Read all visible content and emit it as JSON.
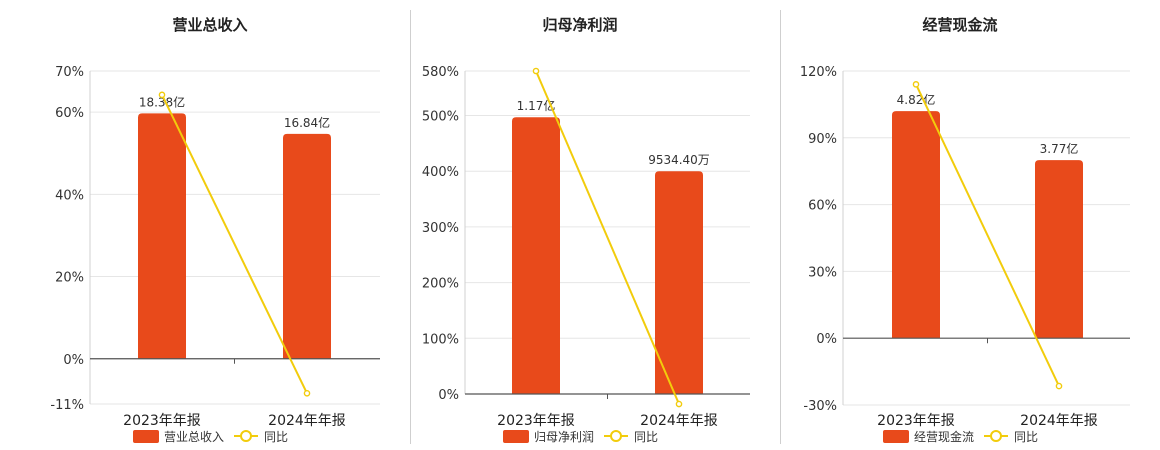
{
  "chart_data": [
    {
      "type": "bar",
      "title": "营业总收入",
      "categories": [
        "2023年年报",
        "2024年年报"
      ],
      "bar_series": {
        "name": "营业总收入",
        "color": "#e84a1b",
        "bar_heights_pct": [
          59.7,
          54.7
        ],
        "labels": [
          "18.38亿",
          "16.84亿"
        ]
      },
      "line_series": {
        "name": "同比",
        "color": "#f2cc0c",
        "values_pct": [
          64.2,
          -8.4
        ]
      },
      "y_ticks": [
        70,
        60,
        40,
        20,
        0,
        -11
      ],
      "y_tick_labels": [
        "70%",
        "60%",
        "40%",
        "20%",
        "0%",
        "-11%"
      ],
      "ylim": [
        -11,
        70
      ],
      "legend": "bottom-center",
      "grid": true
    },
    {
      "type": "bar",
      "title": "归母净利润",
      "categories": [
        "2023年年报",
        "2024年年报"
      ],
      "bar_series": {
        "name": "归母净利润",
        "color": "#e84a1b",
        "bar_heights_pct": [
          497,
          400
        ],
        "labels": [
          "1.17亿",
          "9534.40万"
        ]
      },
      "line_series": {
        "name": "同比",
        "color": "#f2cc0c",
        "values_pct": [
          580,
          -18
        ]
      },
      "y_ticks": [
        580,
        500,
        400,
        300,
        200,
        100,
        0
      ],
      "y_tick_labels": [
        "580%",
        "500%",
        "400%",
        "300%",
        "200%",
        "100%",
        "0%"
      ],
      "ylim": [
        0,
        580
      ],
      "legend": "bottom-center",
      "grid": true
    },
    {
      "type": "bar",
      "title": "经营现金流",
      "categories": [
        "2023年年报",
        "2024年年报"
      ],
      "bar_series": {
        "name": "经营现金流",
        "color": "#e84a1b",
        "bar_heights_pct": [
          102,
          80
        ],
        "labels": [
          "4.82亿",
          "3.77亿"
        ]
      },
      "line_series": {
        "name": "同比",
        "color": "#f2cc0c",
        "values_pct": [
          114,
          -21.5
        ]
      },
      "y_ticks": [
        120,
        90,
        60,
        30,
        0,
        -30
      ],
      "y_tick_labels": [
        "120%",
        "90%",
        "60%",
        "30%",
        "0%",
        "-30%"
      ],
      "ylim": [
        -30,
        120
      ],
      "legend": "bottom-center",
      "grid": true
    }
  ]
}
